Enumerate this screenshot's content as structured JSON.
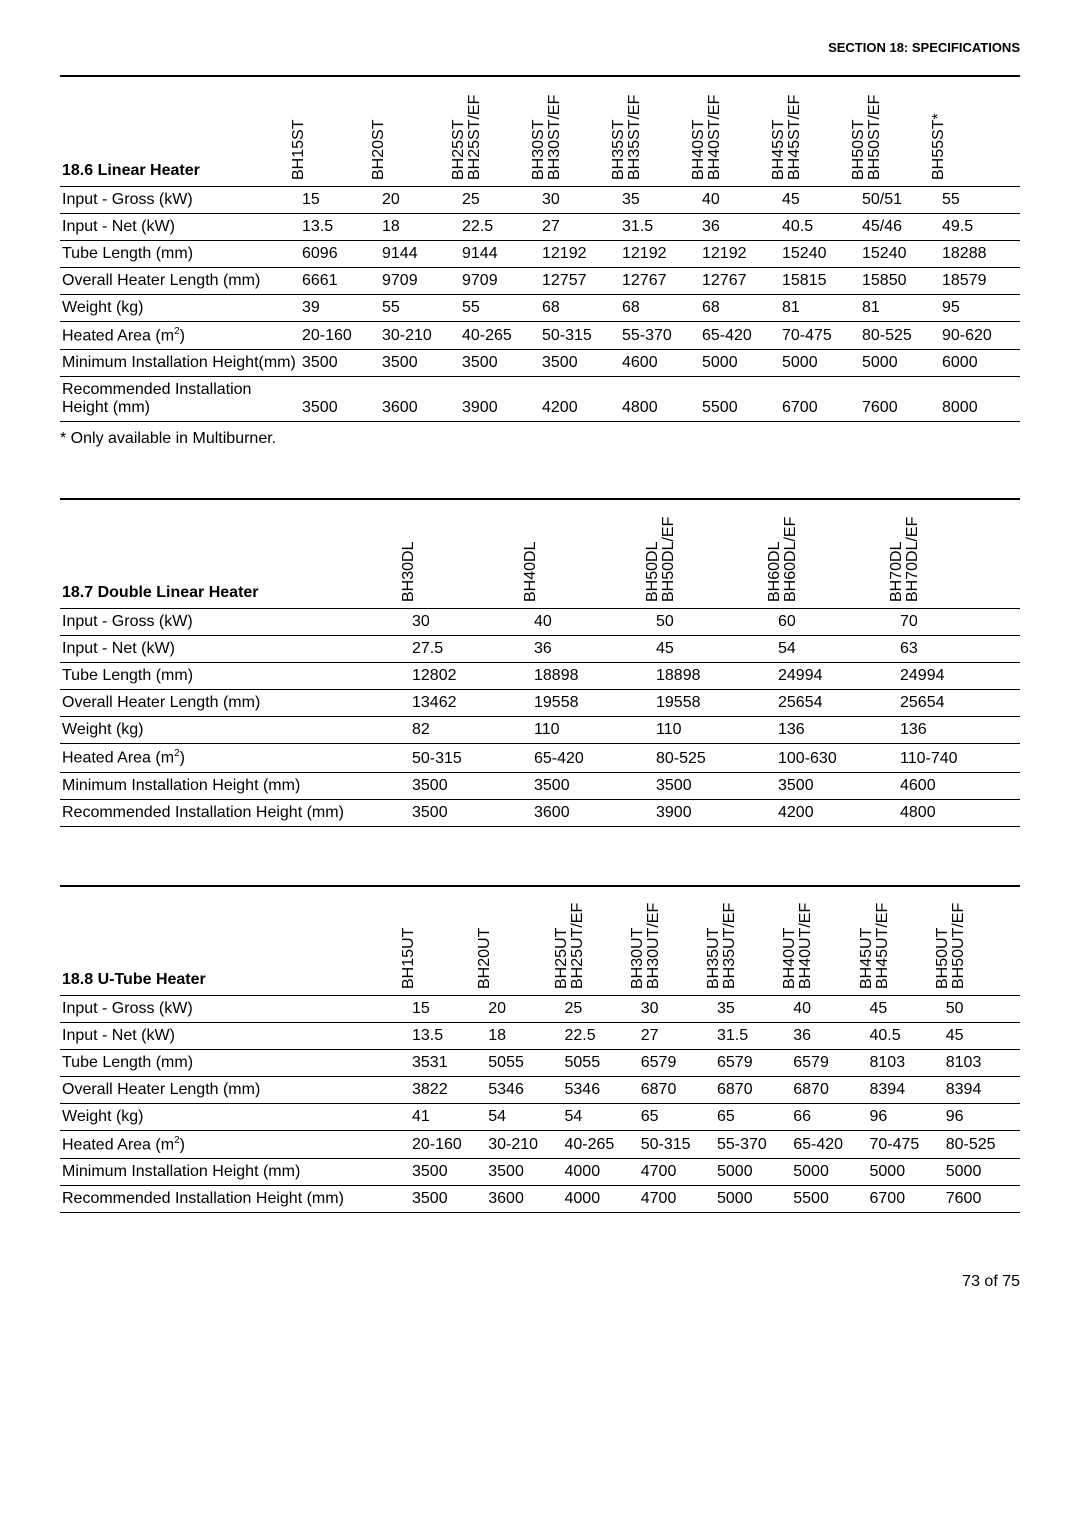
{
  "header": {
    "section": "SECTION 18:",
    "title": "SPECIFICATIONS"
  },
  "table1": {
    "title": "18.6 Linear Heater",
    "columns": [
      "BH15ST",
      "BH20ST",
      "BH25ST\nBH25ST/EF",
      "BH30ST\nBH30ST/EF",
      "BH35ST\nBH35ST/EF",
      "BH40ST\nBH40ST/EF",
      "BH45ST\nBH45ST/EF",
      "BH50ST\nBH50ST/EF",
      "BH55ST*"
    ],
    "rows": [
      {
        "label": "Input - Gross (kW)",
        "vals": [
          "15",
          "20",
          "25",
          "30",
          "35",
          "40",
          "45",
          "50/51",
          "55"
        ]
      },
      {
        "label": "Input - Net (kW)",
        "vals": [
          "13.5",
          "18",
          "22.5",
          "27",
          "31.5",
          "36",
          "40.5",
          "45/46",
          "49.5"
        ]
      },
      {
        "label": "Tube Length (mm)",
        "vals": [
          "6096",
          "9144",
          "9144",
          "12192",
          "12192",
          "12192",
          "15240",
          "15240",
          "18288"
        ]
      },
      {
        "label": "Overall Heater Length (mm)",
        "vals": [
          "6661",
          "9709",
          "9709",
          "12757",
          "12767",
          "12767",
          "15815",
          "15850",
          "18579"
        ]
      },
      {
        "label": "Weight (kg)",
        "vals": [
          "39",
          "55",
          "55",
          "68",
          "68",
          "68",
          "81",
          "81",
          "95"
        ]
      },
      {
        "label": "Heated Area (m²)",
        "vals": [
          "20-160",
          "30-210",
          "40-265",
          "50-315",
          "55-370",
          "65-420",
          "70-475",
          "80-525",
          "90-620"
        ]
      },
      {
        "label": "Minimum Installation Height(mm)",
        "vals": [
          "3500",
          "3500",
          "3500",
          "3500",
          "4600",
          "5000",
          "5000",
          "5000",
          "6000"
        ]
      },
      {
        "label": "Recommended Installation Height (mm)",
        "vals": [
          "3500",
          "3600",
          "3900",
          "4200",
          "4800",
          "5500",
          "6700",
          "7600",
          "8000"
        ]
      }
    ],
    "footnote": "* Only available in Multiburner."
  },
  "table2": {
    "title": "18.7 Double Linear Heater",
    "columns": [
      "BH30DL",
      "BH40DL",
      "BH50DL\nBH50DL/EF",
      "BH60DL\nBH60DL/EF",
      "BH70DL\nBH70DL/EF"
    ],
    "rows": [
      {
        "label": "Input - Gross (kW)",
        "vals": [
          "30",
          "40",
          "50",
          "60",
          "70"
        ]
      },
      {
        "label": "Input - Net (kW)",
        "vals": [
          "27.5",
          "36",
          "45",
          "54",
          "63"
        ]
      },
      {
        "label": "Tube Length (mm)",
        "vals": [
          "12802",
          "18898",
          "18898",
          "24994",
          "24994"
        ]
      },
      {
        "label": "Overall Heater Length (mm)",
        "vals": [
          "13462",
          "19558",
          "19558",
          "25654",
          "25654"
        ]
      },
      {
        "label": "Weight (kg)",
        "vals": [
          "82",
          "110",
          "110",
          "136",
          "136"
        ]
      },
      {
        "label": "Heated Area (m²)",
        "vals": [
          "50-315",
          "65-420",
          "80-525",
          "100-630",
          "110-740"
        ]
      },
      {
        "label": "Minimum Installation Height (mm)",
        "vals": [
          "3500",
          "3500",
          "3500",
          "3500",
          "4600"
        ]
      },
      {
        "label": "Recommended Installation Height (mm)",
        "vals": [
          "3500",
          "3600",
          "3900",
          "4200",
          "4800"
        ]
      }
    ]
  },
  "table3": {
    "title": "18.8 U-Tube Heater",
    "columns": [
      "BH15UT",
      "BH20UT",
      "BH25UT\nBH25UT/EF",
      "BH30UT\nBH30UT/EF",
      "BH35UT\nBH35UT/EF",
      "BH40UT\nBH40UT/EF",
      "BH45UT\nBH45UT/EF",
      "BH50UT\nBH50UT/EF"
    ],
    "rows": [
      {
        "label": "Input - Gross (kW)",
        "vals": [
          "15",
          "20",
          "25",
          "30",
          "35",
          "40",
          "45",
          "50"
        ]
      },
      {
        "label": "Input - Net (kW)",
        "vals": [
          "13.5",
          "18",
          "22.5",
          "27",
          "31.5",
          "36",
          "40.5",
          "45"
        ]
      },
      {
        "label": "Tube Length (mm)",
        "vals": [
          "3531",
          "5055",
          "5055",
          "6579",
          "6579",
          "6579",
          "8103",
          "8103"
        ]
      },
      {
        "label": "Overall Heater Length (mm)",
        "vals": [
          "3822",
          "5346",
          "5346",
          "6870",
          "6870",
          "6870",
          "8394",
          "8394"
        ]
      },
      {
        "label": "Weight (kg)",
        "vals": [
          "41",
          "54",
          "54",
          "65",
          "65",
          "66",
          "96",
          "96"
        ]
      },
      {
        "label": "Heated Area (m²)",
        "vals": [
          "20-160",
          "30-210",
          "40-265",
          "50-315",
          "55-370",
          "65-420",
          "70-475",
          "80-525"
        ]
      },
      {
        "label": "Minimum Installation Height (mm)",
        "vals": [
          "3500",
          "3500",
          "4000",
          "4700",
          "5000",
          "5000",
          "5000",
          "5000"
        ]
      },
      {
        "label": "Recommended Installation Height (mm)",
        "vals": [
          "3500",
          "3600",
          "4000",
          "4700",
          "5000",
          "5500",
          "6700",
          "7600"
        ]
      }
    ]
  },
  "footer": {
    "page": "73 of 75"
  },
  "layout": {
    "table1_label_width": 240,
    "table2_label_width": 350,
    "table3_label_width": 350
  }
}
